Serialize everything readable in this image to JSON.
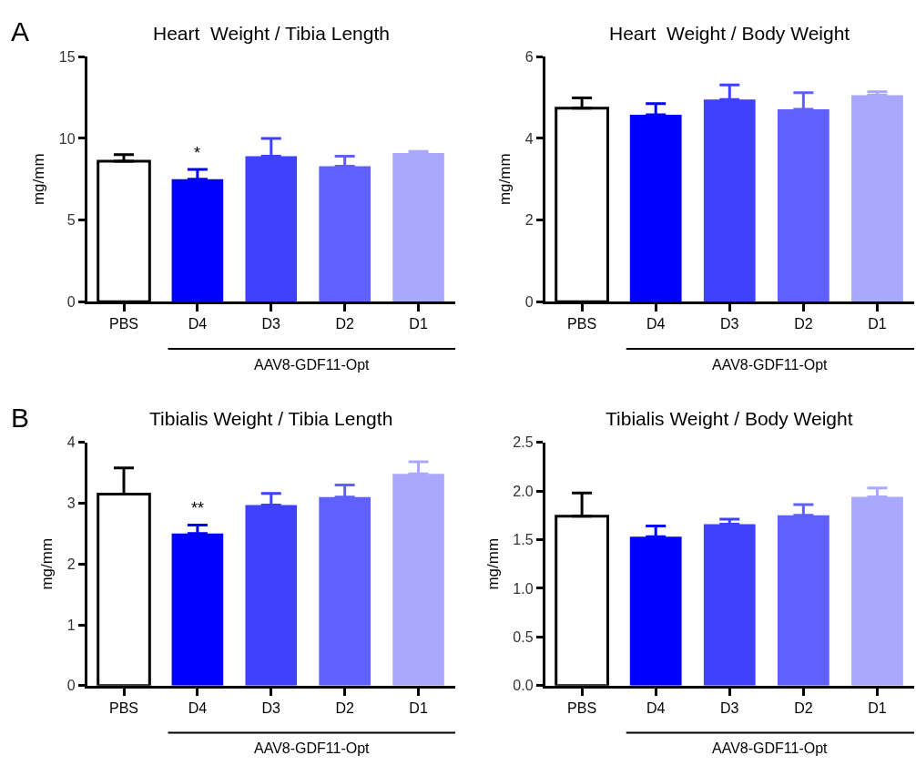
{
  "chart_data": [
    {
      "type": "bar",
      "title": "Heart  Weight / Tibia Length",
      "ylabel": "mg/mm",
      "categories": [
        "PBS",
        "D4",
        "D3",
        "D2",
        "D1"
      ],
      "values": [
        8.6,
        7.5,
        8.9,
        8.3,
        9.1
      ],
      "colors": [
        "#ffffff",
        "#0000ff",
        "#4040ff",
        "#6060ff",
        "#a8a8ff"
      ],
      "errors": [
        [
          8.6,
          9.0
        ],
        [
          7.5,
          8.1
        ],
        [
          8.9,
          10.0
        ],
        [
          8.3,
          8.9
        ],
        [
          9.1,
          9.2
        ]
      ],
      "ylim": [
        0,
        15
      ],
      "yticks": [
        0,
        5,
        10,
        15
      ],
      "annotations": [
        "A",
        "*",
        "AAV8-GDF11-Opt"
      ]
    },
    {
      "type": "bar",
      "title": "Heart  Weight / Body Weight",
      "ylabel": "mg/mm",
      "categories": [
        "PBS",
        "D4",
        "D3",
        "D2",
        "D1"
      ],
      "values": [
        4.74,
        4.58,
        4.95,
        4.71,
        5.06
      ],
      "colors": [
        "#ffffff",
        "#0000ff",
        "#4040ff",
        "#6060ff",
        "#a8a8ff"
      ],
      "errors": [
        [
          4.74,
          4.99
        ],
        [
          4.58,
          4.85
        ],
        [
          4.95,
          5.31
        ],
        [
          4.71,
          5.12
        ],
        [
          5.06,
          5.14
        ]
      ],
      "ylim": [
        0,
        6
      ],
      "yticks": [
        0,
        2,
        4,
        6
      ],
      "annotations": [
        "AAV8-GDF11-Opt"
      ]
    },
    {
      "type": "bar",
      "title": "Tibialis Weight / Tibia Length",
      "ylabel": "mg/mm",
      "categories": [
        "PBS",
        "D4",
        "D3",
        "D2",
        "D1"
      ],
      "values": [
        3.15,
        2.5,
        2.97,
        3.1,
        3.48
      ],
      "colors": [
        "#ffffff",
        "#0000ff",
        "#4040ff",
        "#6060ff",
        "#a8a8ff"
      ],
      "errors": [
        [
          3.15,
          3.58
        ],
        [
          2.5,
          2.64
        ],
        [
          2.97,
          3.16
        ],
        [
          3.1,
          3.3
        ],
        [
          3.48,
          3.68
        ]
      ],
      "ylim": [
        0,
        4
      ],
      "yticks": [
        0,
        1,
        2,
        3,
        4
      ],
      "annotations": [
        "B",
        "**",
        "AAV8-GDF11-Opt"
      ]
    },
    {
      "type": "bar",
      "title": "Tibialis Weight / Body Weight",
      "ylabel": "mg/mm",
      "categories": [
        "PBS",
        "D4",
        "D3",
        "D2",
        "D1"
      ],
      "values": [
        1.74,
        1.53,
        1.66,
        1.75,
        1.94
      ],
      "colors": [
        "#ffffff",
        "#0000ff",
        "#4040ff",
        "#6060ff",
        "#a8a8ff"
      ],
      "errors": [
        [
          1.74,
          1.98
        ],
        [
          1.53,
          1.64
        ],
        [
          1.66,
          1.71
        ],
        [
          1.75,
          1.86
        ],
        [
          1.94,
          2.03
        ]
      ],
      "ylim": [
        0,
        2.5
      ],
      "yticks": [
        {
          "value": 0,
          "label": "0.0"
        },
        0.5,
        {
          "value": 1,
          "label": "1.0"
        },
        1.5,
        {
          "value": 2,
          "label": "2.0"
        },
        2.5
      ],
      "annotations": [
        "AAV8-GDF11-Opt"
      ]
    }
  ]
}
